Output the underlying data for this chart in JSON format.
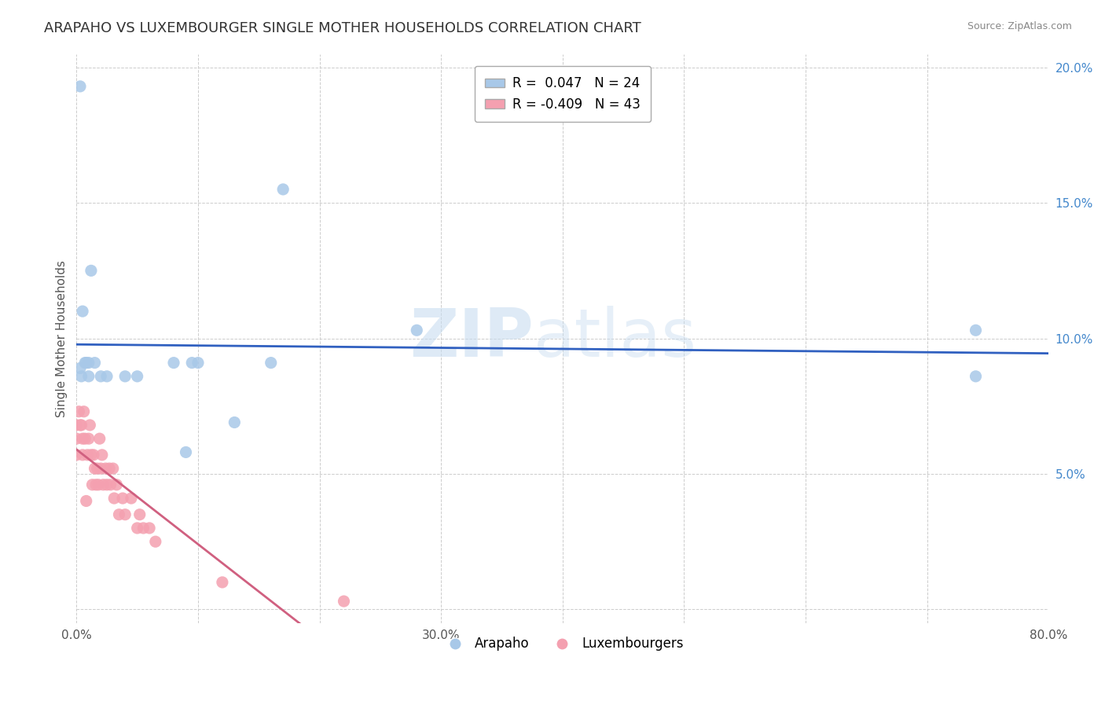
{
  "title": "ARAPAHO VS LUXEMBOURGER SINGLE MOTHER HOUSEHOLDS CORRELATION CHART",
  "source": "Source: ZipAtlas.com",
  "ylabel": "Single Mother Households",
  "xlim": [
    0.0,
    0.8
  ],
  "ylim": [
    -0.005,
    0.205
  ],
  "xticks": [
    0.0,
    0.1,
    0.2,
    0.3,
    0.4,
    0.5,
    0.6,
    0.7,
    0.8
  ],
  "xticklabels": [
    "0.0%",
    "",
    "",
    "30.0%",
    "",
    "",
    "",
    "",
    "80.0%"
  ],
  "yticks": [
    0.0,
    0.05,
    0.1,
    0.15,
    0.2
  ],
  "arapaho_R": 0.047,
  "arapaho_N": 24,
  "luxembourger_R": -0.409,
  "luxembourger_N": 43,
  "arapaho_color": "#a8c8e8",
  "luxembourger_color": "#f4a0b0",
  "arapaho_line_color": "#3060c0",
  "luxembourger_line_color": "#d06080",
  "ytick_color": "#4488cc",
  "xtick_color": "#555555",
  "arapaho_x": [
    0.003,
    0.003,
    0.004,
    0.005,
    0.007,
    0.008,
    0.01,
    0.01,
    0.012,
    0.015,
    0.02,
    0.025,
    0.04,
    0.09,
    0.095,
    0.1,
    0.13,
    0.16,
    0.17,
    0.28,
    0.74,
    0.74,
    0.05,
    0.08
  ],
  "arapaho_y": [
    0.193,
    0.089,
    0.086,
    0.11,
    0.091,
    0.091,
    0.086,
    0.091,
    0.125,
    0.091,
    0.086,
    0.086,
    0.086,
    0.058,
    0.091,
    0.091,
    0.069,
    0.091,
    0.155,
    0.103,
    0.103,
    0.086,
    0.086,
    0.091
  ],
  "luxembourger_x": [
    0.0,
    0.0,
    0.0,
    0.002,
    0.003,
    0.004,
    0.005,
    0.005,
    0.006,
    0.007,
    0.008,
    0.009,
    0.01,
    0.011,
    0.012,
    0.013,
    0.014,
    0.015,
    0.016,
    0.017,
    0.018,
    0.019,
    0.02,
    0.021,
    0.022,
    0.024,
    0.025,
    0.027,
    0.028,
    0.03,
    0.031,
    0.033,
    0.035,
    0.038,
    0.04,
    0.045,
    0.05,
    0.052,
    0.055,
    0.06,
    0.065,
    0.12,
    0.22
  ],
  "luxembourger_y": [
    0.068,
    0.063,
    0.057,
    0.073,
    0.068,
    0.068,
    0.063,
    0.057,
    0.073,
    0.063,
    0.04,
    0.057,
    0.063,
    0.068,
    0.057,
    0.046,
    0.057,
    0.052,
    0.046,
    0.052,
    0.046,
    0.063,
    0.052,
    0.057,
    0.046,
    0.052,
    0.046,
    0.052,
    0.046,
    0.052,
    0.041,
    0.046,
    0.035,
    0.041,
    0.035,
    0.041,
    0.03,
    0.035,
    0.03,
    0.03,
    0.025,
    0.01,
    0.003
  ],
  "watermark_zip": "ZIP",
  "watermark_atlas": "atlas",
  "background_color": "#ffffff",
  "grid_color": "#cccccc",
  "title_fontsize": 13,
  "label_fontsize": 11,
  "tick_fontsize": 11,
  "legend_fontsize": 12
}
